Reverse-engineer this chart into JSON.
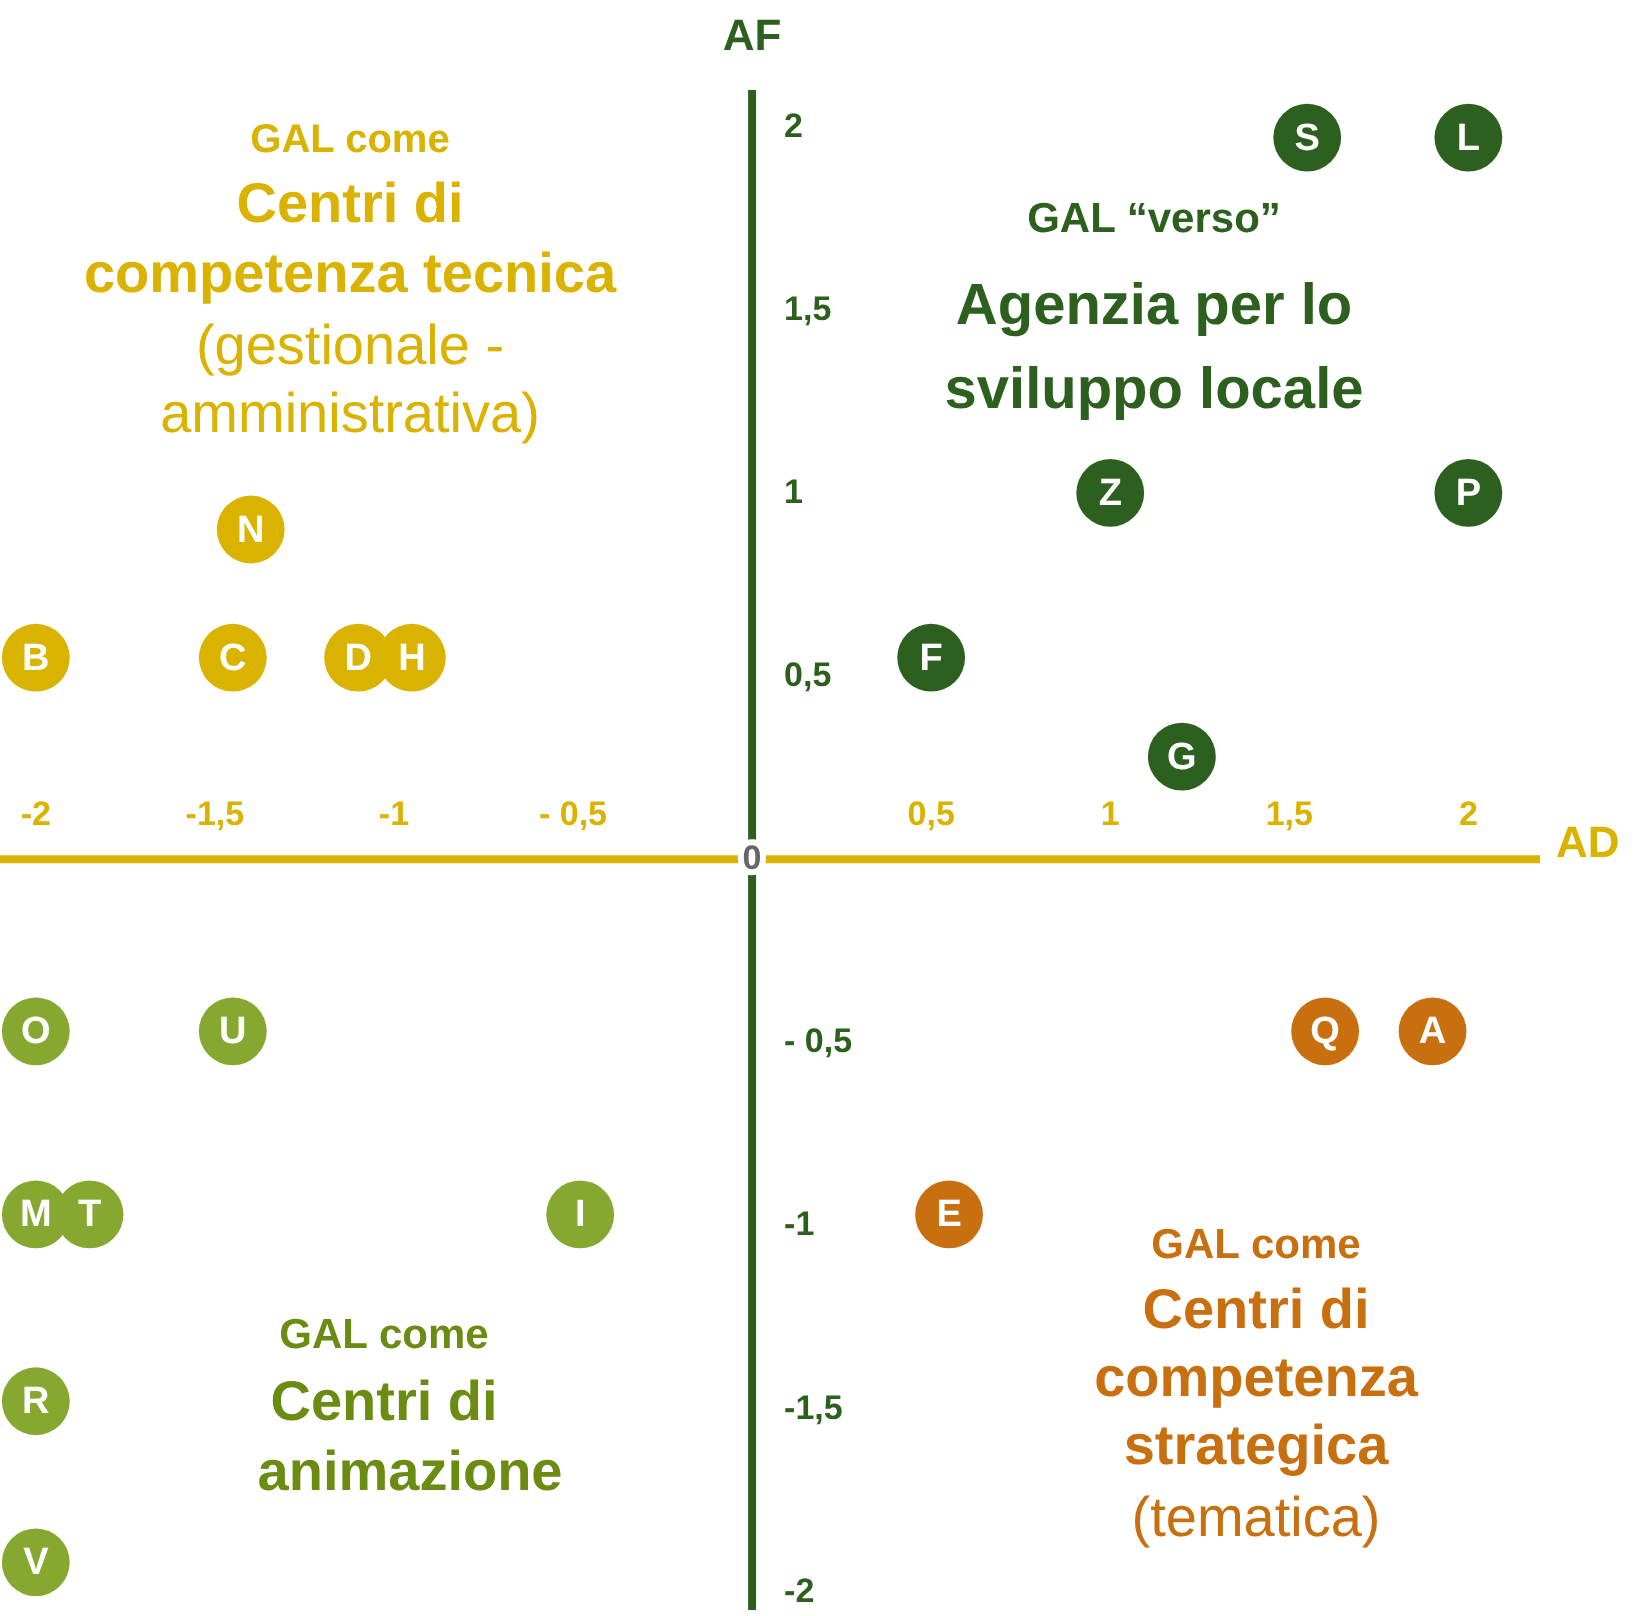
{
  "chart_data": {
    "type": "scatter",
    "xlabel": "AD",
    "ylabel": "AF",
    "xlim": [
      -2.1,
      2.2
    ],
    "ylim": [
      -2.05,
      2.1
    ],
    "xticks": [
      {
        "value": -2,
        "label": "-2"
      },
      {
        "value": -1.5,
        "label": "-1,5"
      },
      {
        "value": -1,
        "label": "-1"
      },
      {
        "value": -0.5,
        "label": "- 0,5"
      },
      {
        "value": 0.5,
        "label": "0,5"
      },
      {
        "value": 1,
        "label": "1"
      },
      {
        "value": 1.5,
        "label": "1,5"
      },
      {
        "value": 2,
        "label": "2"
      }
    ],
    "yticks": [
      {
        "value": -2,
        "label": "-2"
      },
      {
        "value": -1.5,
        "label": "-1,5"
      },
      {
        "value": -1,
        "label": "-1"
      },
      {
        "value": -0.5,
        "label": "- 0,5"
      },
      {
        "value": 0.5,
        "label": "0,5"
      },
      {
        "value": 1,
        "label": "1"
      },
      {
        "value": 1.5,
        "label": "1,5"
      },
      {
        "value": 2,
        "label": "2"
      }
    ],
    "marker": "circle",
    "series": [
      {
        "color": "#2d5f1f",
        "x": [
          1.55,
          2.0,
          1.0,
          2.0,
          0.5,
          1.2
        ],
        "values": [
          1.97,
          1.97,
          1.0,
          1.0,
          0.55,
          0.28
        ],
        "value_labels": [
          "S",
          "L",
          "Z",
          "P",
          "F",
          "G"
        ]
      },
      {
        "color": "#dab200",
        "x": [
          -1.4,
          -2.0,
          -1.45,
          -1.1,
          -0.95
        ],
        "values": [
          0.9,
          0.55,
          0.55,
          0.55,
          0.55
        ],
        "value_labels": [
          "N",
          "B",
          "C",
          "D",
          "H"
        ]
      },
      {
        "color": "#87a830",
        "x": [
          -2.0,
          -1.45,
          -2.0,
          -1.85,
          -0.48,
          -2.0,
          -2.0
        ],
        "values": [
          -0.47,
          -0.47,
          -0.97,
          -0.97,
          -0.97,
          -1.48,
          -1.92
        ],
        "value_labels": [
          "O",
          "U",
          "M",
          "T",
          "I",
          "R",
          "V"
        ]
      },
      {
        "color": "#c8700f",
        "x": [
          1.6,
          1.9,
          0.55
        ],
        "values": [
          -0.47,
          -0.47,
          -0.97
        ],
        "value_labels": [
          "Q",
          "A",
          "E"
        ]
      }
    ],
    "annotations": [
      "GAL come",
      "Centri di",
      "competenza tecnica",
      "(gestionale -",
      "amministrativa)",
      "GAL “verso”",
      "Agenzia per lo",
      "sviluppo locale",
      "GAL come",
      "Centri di",
      "animazione",
      "GAL come",
      "Centri di",
      "competenza",
      "strategica",
      "(tematica)",
      "0"
    ]
  }
}
